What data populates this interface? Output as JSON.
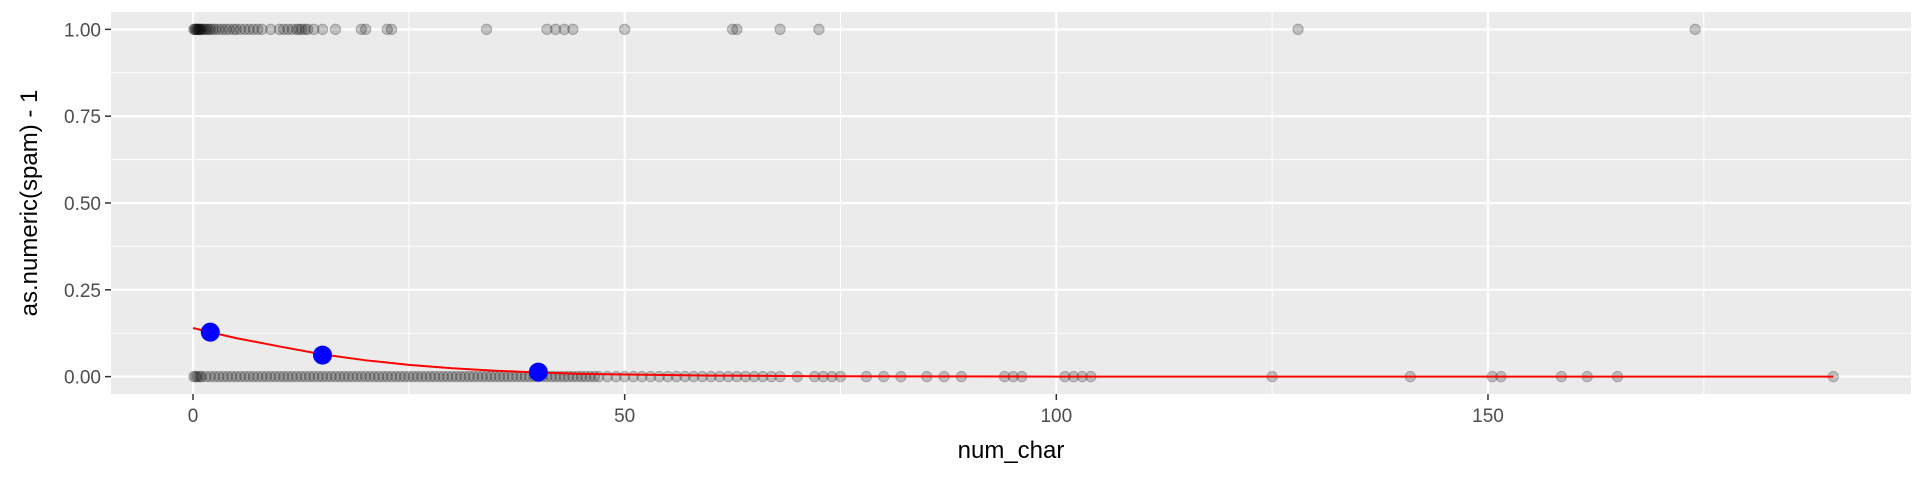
{
  "chart_data": {
    "type": "scatter",
    "xlabel": "num_char",
    "ylabel": "as.numeric(spam) - 1",
    "xlim": [
      -9.5,
      199
    ],
    "ylim": [
      -0.05,
      1.05
    ],
    "x_ticks": [
      0,
      50,
      100,
      150
    ],
    "x_tick_labels": [
      "0",
      "50",
      "100",
      "150"
    ],
    "y_ticks": [
      0,
      0.25,
      0.5,
      0.75,
      1
    ],
    "y_tick_labels": [
      "0.00",
      "0.25",
      "0.50",
      "0.75",
      "1.00"
    ],
    "grid": true,
    "colors": {
      "panel_background": "#ebebeb",
      "grid": "#ffffff",
      "points": "#000000",
      "fit_line": "#ff0000",
      "highlight_points": "#0000ff"
    },
    "point_alpha": 0.2,
    "series": [
      {
        "kind": "points",
        "x": [
          0.1,
          0.2,
          0.3,
          0.4,
          0.5,
          0.6,
          0.7,
          0.8,
          0.9,
          1.0,
          1.2,
          1.4,
          1.6,
          1.8,
          2.0,
          2.3,
          2.6,
          3.0,
          3.4,
          3.8,
          4.2,
          4.7,
          5.0,
          5.5,
          6.0,
          6.5,
          7.0,
          7.5,
          8.0,
          9.0,
          10.0,
          10.5,
          11.0,
          11.5,
          12.0,
          12.3,
          12.6,
          13.0,
          13.3,
          14.0,
          15.0,
          16.5,
          19.5,
          20.0,
          22.5,
          23.0,
          34.0,
          41.0,
          42.0,
          43.0,
          44.0,
          50.0,
          62.5,
          63.0,
          68.0,
          72.5,
          128.0,
          174.0
        ],
        "y": [
          1,
          1,
          1,
          1,
          1,
          1,
          1,
          1,
          1,
          1,
          1,
          1,
          1,
          1,
          1,
          1,
          1,
          1,
          1,
          1,
          1,
          1,
          1,
          1,
          1,
          1,
          1,
          1,
          1,
          1,
          1,
          1,
          1,
          1,
          1,
          1,
          1,
          1,
          1,
          1,
          1,
          1,
          1,
          1,
          1,
          1,
          1,
          1,
          1,
          1,
          1,
          1,
          1,
          1,
          1,
          1,
          1,
          1
        ]
      },
      {
        "kind": "points",
        "x": [
          0.1,
          0.3,
          0.5,
          0.8,
          1.0,
          1.5,
          2.0,
          2.5,
          3.0,
          3.5,
          4.0,
          4.5,
          5.0,
          5.5,
          6.0,
          6.5,
          7.0,
          7.5,
          8.0,
          8.5,
          9.0,
          9.5,
          10.0,
          10.5,
          11.0,
          11.5,
          12.0,
          12.5,
          13.0,
          13.5,
          14.0,
          14.5,
          15.0,
          15.5,
          16.0,
          16.5,
          17.0,
          17.5,
          18.0,
          18.5,
          19.0,
          19.5,
          20.0,
          20.5,
          21.0,
          21.5,
          22.0,
          22.5,
          23.0,
          23.5,
          24.0,
          24.5,
          25.0,
          25.5,
          26.0,
          26.5,
          27.0,
          27.5,
          28.0,
          28.5,
          29.0,
          29.5,
          30.0,
          30.5,
          31.0,
          31.5,
          32.0,
          32.5,
          33.0,
          33.5,
          34.0,
          34.5,
          35.0,
          35.5,
          36.0,
          36.5,
          37.0,
          37.5,
          38.0,
          38.5,
          39.0,
          39.5,
          40.0,
          40.5,
          41.0,
          41.5,
          42.0,
          42.5,
          43.0,
          43.5,
          44.0,
          44.5,
          45.0,
          45.5,
          46.0,
          46.5,
          47.0,
          48.0,
          49.0,
          50.0,
          51.0,
          52.0,
          53.0,
          54.0,
          55.0,
          56.0,
          57.0,
          58.0,
          59.0,
          60.0,
          61.0,
          62.0,
          63.0,
          64.0,
          65.0,
          66.0,
          67.0,
          68.0,
          70.0,
          72.0,
          73.0,
          74.0,
          75.0,
          78.0,
          80.0,
          82.0,
          85.0,
          87.0,
          89.0,
          94.0,
          95.0,
          96.0,
          101.0,
          102.0,
          103.0,
          104.0,
          125.0,
          141.0,
          150.5,
          151.5,
          158.5,
          161.5,
          165.0,
          190.0
        ],
        "y": [
          0,
          0,
          0,
          0,
          0,
          0,
          0,
          0,
          0,
          0,
          0,
          0,
          0,
          0,
          0,
          0,
          0,
          0,
          0,
          0,
          0,
          0,
          0,
          0,
          0,
          0,
          0,
          0,
          0,
          0,
          0,
          0,
          0,
          0,
          0,
          0,
          0,
          0,
          0,
          0,
          0,
          0,
          0,
          0,
          0,
          0,
          0,
          0,
          0,
          0,
          0,
          0,
          0,
          0,
          0,
          0,
          0,
          0,
          0,
          0,
          0,
          0,
          0,
          0,
          0,
          0,
          0,
          0,
          0,
          0,
          0,
          0,
          0,
          0,
          0,
          0,
          0,
          0,
          0,
          0,
          0,
          0,
          0,
          0,
          0,
          0,
          0,
          0,
          0,
          0,
          0,
          0,
          0,
          0,
          0,
          0,
          0,
          0,
          0,
          0,
          0,
          0,
          0,
          0,
          0,
          0,
          0,
          0,
          0,
          0,
          0,
          0,
          0,
          0,
          0,
          0,
          0,
          0,
          0,
          0,
          0,
          0,
          0,
          0,
          0,
          0,
          0,
          0,
          0,
          0,
          0,
          0,
          0,
          0,
          0,
          0,
          0,
          0,
          0,
          0,
          0,
          0,
          0,
          0
        ]
      },
      {
        "kind": "fit_line",
        "x": [
          0,
          2,
          5,
          10,
          15,
          20,
          25,
          30,
          35,
          40,
          45,
          50,
          60,
          70,
          80,
          100,
          120,
          150,
          190
        ],
        "y": [
          0.14,
          0.128,
          0.111,
          0.087,
          0.064,
          0.047,
          0.034,
          0.024,
          0.017,
          0.012,
          0.008,
          0.006,
          0.003,
          0.0015,
          0.0008,
          0.0002,
          0.0001,
          0,
          0
        ]
      },
      {
        "kind": "highlight_points",
        "x": [
          2,
          15,
          40
        ],
        "y": [
          0.128,
          0.062,
          0.013
        ]
      }
    ]
  }
}
